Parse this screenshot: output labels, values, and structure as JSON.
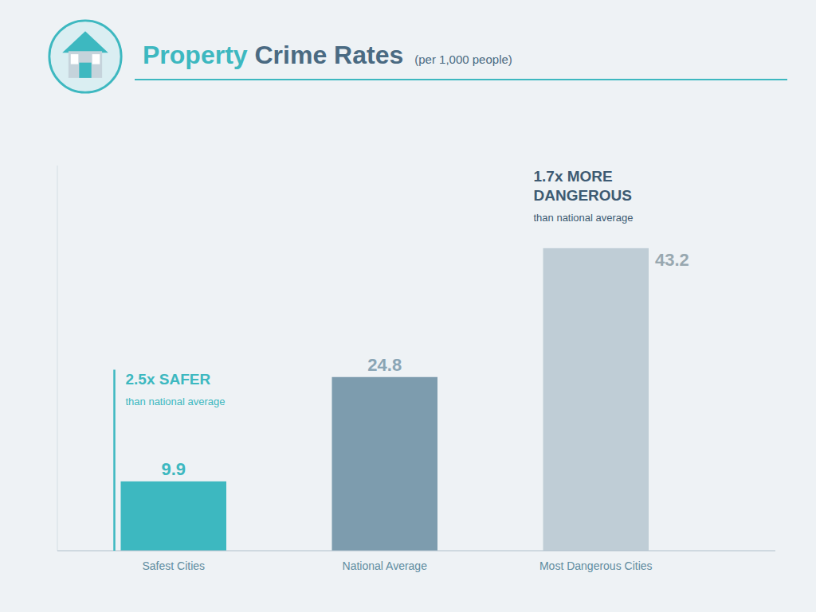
{
  "chart_data": {
    "type": "bar",
    "title": "Property Crime Rates",
    "subtitle": "(per 1,000 people)",
    "categories": [
      "Safest Cities",
      "National Average",
      "Most Dangerous Cities"
    ],
    "values": [
      9.9,
      24.8,
      43.2
    ],
    "colors": [
      "#3db8c0",
      "#7d9cae",
      "#bfcdd6"
    ],
    "ylim": [
      0,
      55
    ],
    "data_labels": true,
    "tick_labels": "x",
    "grid": false,
    "annotations": [
      "2.5x SAFER",
      "than national average",
      "1.7x MORE\nDANGEROUS",
      "than national average"
    ]
  }
}
